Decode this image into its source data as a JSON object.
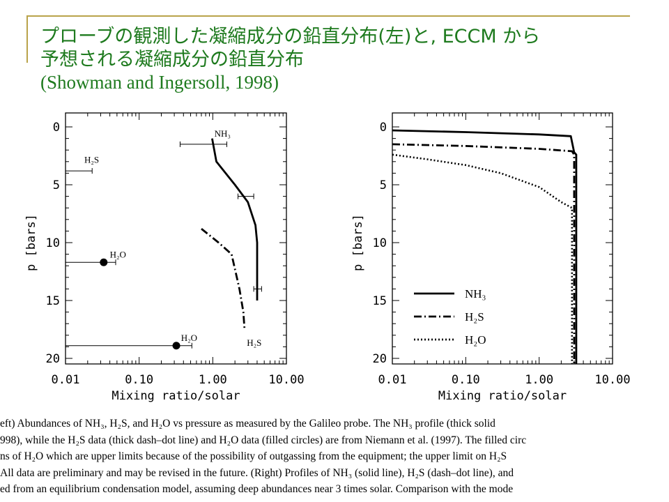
{
  "slide": {
    "title_line1": "プローブの観測した凝縮成分の鉛直分布(左)と, ECCM から",
    "title_line2": "予想される凝縮成分の鉛直分布",
    "citation": "(Showman and Ingersoll, 1998)",
    "title_color": "#1e7a1e",
    "accent_color": "#b9a34a"
  },
  "caption": [
    "eft) Abundances of NH₃, H₂S, and H₂O vs pressure as measured by the Galileo probe. The NH₃ profile (thick solid",
    "998), while the H₂S data (thick dash–dot line) and H₂O data (filled circles) are from Niemann et al. (1997). The filled circ",
    "ns of H₂O which are upper limits because of the possibility of outgassing from the equipment; the upper limit on H₂S",
    " All data are preliminary and may be revised in the future. (Right) Profiles of NH₃ (solid line), H₂S (dash–dot line), and",
    "ed from an equilibrium condensation model, assuming deep abundances near 3 times solar. Comparison with the mode"
  ],
  "chart_data": [
    {
      "type": "line",
      "panel": "left",
      "xlabel": "Mixing ratio/solar",
      "ylabel": "p [bars]",
      "xscale": "log",
      "xlim": [
        0.01,
        10
      ],
      "ylim": [
        20,
        0
      ],
      "xtick_labels": [
        "0.01",
        "0.10",
        "1.00",
        "10.00"
      ],
      "xtick_values": [
        0.01,
        0.1,
        1,
        10
      ],
      "ytick_labels": [
        "0",
        "5",
        "10",
        "15",
        "20"
      ],
      "ytick_values": [
        0,
        5,
        10,
        15,
        20
      ],
      "series": [
        {
          "style": "solid",
          "x": [
            0.98,
            1.12,
            2.0,
            3.0,
            3.8,
            4.0,
            4.0
          ],
          "y": [
            1.0,
            3.0,
            5.0,
            6.5,
            8.5,
            10.0,
            15.0
          ]
        },
        {
          "style": "dashdot",
          "x": [
            0.7,
            1.2,
            1.8,
            2.3,
            2.6,
            2.7
          ],
          "y": [
            8.8,
            10.0,
            11.0,
            14.0,
            16.0,
            17.5
          ]
        }
      ],
      "points": [
        {
          "x": 0.033,
          "y": 11.7,
          "xmin": 0.01,
          "xmax": 0.048
        },
        {
          "x": 0.32,
          "y": 18.9,
          "xmin": 0.01,
          "xmax": 0.52
        }
      ],
      "intervals": [
        {
          "y": 1.5,
          "xmin": 0.36,
          "xmax": 1.55
        },
        {
          "y": 3.8,
          "xmin": 0.01,
          "xmax": 0.023
        },
        {
          "y": 6.0,
          "xmin": 2.2,
          "xmax": 3.6
        },
        {
          "y": 14.0,
          "xmin": 3.6,
          "xmax": 4.6
        }
      ],
      "labels": [
        {
          "text": "NH₃",
          "x": 1.05,
          "y": 0.55
        },
        {
          "text": "H₂S",
          "x": 0.018,
          "y": 2.8
        },
        {
          "text": "H₂O",
          "x": 0.04,
          "y": 11.0
        },
        {
          "text": "H₂O",
          "x": 0.37,
          "y": 18.2
        },
        {
          "text": "H₂S",
          "x": 2.9,
          "y": 18.6
        }
      ]
    },
    {
      "type": "line",
      "panel": "right",
      "xlabel": "Mixing ratio/solar",
      "ylabel": "p [bars]",
      "xscale": "log",
      "xlim": [
        0.01,
        10
      ],
      "ylim": [
        20,
        0
      ],
      "xtick_labels": [
        "0.01",
        "0.10",
        "1.00",
        "10.00"
      ],
      "xtick_values": [
        0.01,
        0.1,
        1,
        10
      ],
      "ytick_labels": [
        "0",
        "5",
        "10",
        "15",
        "20"
      ],
      "ytick_values": [
        0,
        5,
        10,
        15,
        20
      ],
      "legend": "bottom-left",
      "series": [
        {
          "name": "NH₃",
          "style": "solid",
          "x": [
            0.01,
            0.1,
            1.0,
            2.7,
            3.0,
            3.2,
            3.2
          ],
          "y": [
            0.3,
            0.45,
            0.65,
            0.8,
            2.2,
            2.4,
            20.5
          ]
        },
        {
          "name": "H₂S",
          "style": "dashdot",
          "x": [
            0.01,
            0.1,
            1.0,
            2.8,
            3.0,
            3.0
          ],
          "y": [
            1.5,
            1.65,
            1.9,
            2.1,
            2.4,
            20.5
          ]
        },
        {
          "name": "H₂O",
          "style": "dotted",
          "x": [
            0.01,
            0.03,
            0.1,
            0.3,
            1.0,
            2.0,
            2.8,
            2.8
          ],
          "y": [
            2.4,
            2.8,
            3.3,
            4.0,
            5.2,
            6.5,
            7.0,
            20.5
          ]
        }
      ]
    }
  ]
}
